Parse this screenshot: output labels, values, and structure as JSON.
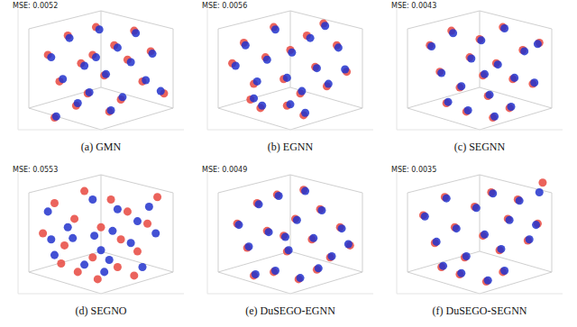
{
  "chart_data": [
    {
      "type": "scatter",
      "title": "(a) GMN",
      "annotation": "MSE: 0.0052",
      "xlim": [
        0,
        1
      ],
      "ylim": [
        0,
        1
      ],
      "tick_labels": false,
      "grid": false,
      "series": [
        {
          "color": "#e8483f",
          "x": [
            0.18,
            0.25,
            0.3,
            0.38,
            0.42,
            0.47,
            0.52,
            0.58,
            0.62,
            0.66,
            0.7,
            0.75,
            0.8,
            0.55,
            0.35,
            0.22,
            0.88,
            0.45
          ],
          "y": [
            0.62,
            0.4,
            0.78,
            0.55,
            0.3,
            0.85,
            0.45,
            0.7,
            0.25,
            0.58,
            0.82,
            0.4,
            0.65,
            0.15,
            0.2,
            0.1,
            0.3,
            0.62
          ]
        },
        {
          "color": "#2233cc",
          "x": [
            0.2,
            0.27,
            0.31,
            0.4,
            0.43,
            0.49,
            0.53,
            0.6,
            0.63,
            0.68,
            0.71,
            0.77,
            0.81,
            0.56,
            0.36,
            0.23,
            0.86,
            0.47
          ],
          "y": [
            0.6,
            0.42,
            0.76,
            0.53,
            0.31,
            0.83,
            0.46,
            0.68,
            0.27,
            0.56,
            0.8,
            0.41,
            0.63,
            0.16,
            0.22,
            0.11,
            0.32,
            0.6
          ]
        }
      ]
    },
    {
      "type": "scatter",
      "title": "(b) EGNN",
      "annotation": "MSE: 0.0056",
      "xlim": [
        0,
        1
      ],
      "ylim": [
        0,
        1
      ],
      "tick_labels": false,
      "grid": false,
      "series": [
        {
          "color": "#e8483f",
          "x": [
            0.15,
            0.22,
            0.28,
            0.35,
            0.4,
            0.46,
            0.5,
            0.56,
            0.6,
            0.65,
            0.72,
            0.78,
            0.84,
            0.48,
            0.32,
            0.7,
            0.58,
            0.26
          ],
          "y": [
            0.55,
            0.72,
            0.38,
            0.6,
            0.85,
            0.42,
            0.66,
            0.3,
            0.78,
            0.52,
            0.36,
            0.7,
            0.48,
            0.2,
            0.18,
            0.88,
            0.12,
            0.25
          ]
        },
        {
          "color": "#2233cc",
          "x": [
            0.17,
            0.23,
            0.3,
            0.36,
            0.41,
            0.48,
            0.51,
            0.57,
            0.62,
            0.66,
            0.73,
            0.79,
            0.83,
            0.5,
            0.33,
            0.71,
            0.59,
            0.28
          ],
          "y": [
            0.53,
            0.7,
            0.4,
            0.58,
            0.83,
            0.43,
            0.64,
            0.32,
            0.76,
            0.51,
            0.38,
            0.68,
            0.5,
            0.21,
            0.2,
            0.86,
            0.14,
            0.26
          ]
        }
      ]
    },
    {
      "type": "scatter",
      "title": "(c) SEGNN",
      "annotation": "MSE: 0.0043",
      "xlim": [
        0,
        1
      ],
      "ylim": [
        0,
        1
      ],
      "tick_labels": false,
      "grid": false,
      "series": [
        {
          "color": "#e8483f",
          "x": [
            0.2,
            0.26,
            0.33,
            0.38,
            0.44,
            0.5,
            0.55,
            0.6,
            0.64,
            0.7,
            0.76,
            0.82,
            0.42,
            0.58,
            0.3,
            0.68,
            0.86,
            0.52
          ],
          "y": [
            0.7,
            0.48,
            0.82,
            0.35,
            0.6,
            0.75,
            0.28,
            0.55,
            0.85,
            0.42,
            0.66,
            0.38,
            0.15,
            0.1,
            0.22,
            0.18,
            0.72,
            0.45
          ]
        },
        {
          "color": "#2233cc",
          "x": [
            0.21,
            0.27,
            0.34,
            0.39,
            0.45,
            0.51,
            0.56,
            0.61,
            0.65,
            0.71,
            0.77,
            0.83,
            0.43,
            0.59,
            0.31,
            0.69,
            0.85,
            0.53
          ],
          "y": [
            0.69,
            0.47,
            0.8,
            0.36,
            0.59,
            0.74,
            0.29,
            0.54,
            0.84,
            0.43,
            0.65,
            0.39,
            0.16,
            0.11,
            0.23,
            0.19,
            0.71,
            0.46
          ]
        }
      ]
    },
    {
      "type": "scatter",
      "title": "(d) SEGNO",
      "annotation": "MSE: 0.0553",
      "xlim": [
        0,
        1
      ],
      "ylim": [
        0,
        1
      ],
      "tick_labels": false,
      "grid": false,
      "series": [
        {
          "color": "#e8483f",
          "x": [
            0.15,
            0.22,
            0.28,
            0.34,
            0.4,
            0.45,
            0.5,
            0.56,
            0.62,
            0.66,
            0.72,
            0.78,
            0.84,
            0.36,
            0.48,
            0.6,
            0.26,
            0.7
          ],
          "y": [
            0.5,
            0.75,
            0.4,
            0.62,
            0.85,
            0.3,
            0.55,
            0.78,
            0.45,
            0.68,
            0.35,
            0.58,
            0.8,
            0.18,
            0.12,
            0.22,
            0.25,
            0.15
          ]
        },
        {
          "color": "#2233cc",
          "x": [
            0.2,
            0.18,
            0.33,
            0.3,
            0.45,
            0.5,
            0.46,
            0.6,
            0.57,
            0.72,
            0.68,
            0.83,
            0.79,
            0.4,
            0.52,
            0.55,
            0.22,
            0.75
          ],
          "y": [
            0.45,
            0.68,
            0.46,
            0.55,
            0.78,
            0.36,
            0.48,
            0.7,
            0.52,
            0.6,
            0.42,
            0.5,
            0.72,
            0.24,
            0.18,
            0.28,
            0.32,
            0.22
          ]
        }
      ]
    },
    {
      "type": "scatter",
      "title": "(e) DuSEGO-EGNN",
      "annotation": "MSE: 0.0049",
      "xlim": [
        0,
        1
      ],
      "ylim": [
        0,
        1
      ],
      "tick_labels": false,
      "grid": false,
      "series": [
        {
          "color": "#e8483f",
          "x": [
            0.18,
            0.24,
            0.3,
            0.36,
            0.42,
            0.48,
            0.53,
            0.58,
            0.63,
            0.68,
            0.74,
            0.8,
            0.86,
            0.4,
            0.55,
            0.28,
            0.66,
            0.46
          ],
          "y": [
            0.58,
            0.38,
            0.75,
            0.52,
            0.82,
            0.35,
            0.62,
            0.86,
            0.45,
            0.7,
            0.3,
            0.55,
            0.4,
            0.18,
            0.12,
            0.15,
            0.2,
            0.48
          ]
        },
        {
          "color": "#2233cc",
          "x": [
            0.19,
            0.25,
            0.31,
            0.37,
            0.43,
            0.49,
            0.54,
            0.59,
            0.64,
            0.69,
            0.75,
            0.81,
            0.85,
            0.41,
            0.56,
            0.29,
            0.67,
            0.47
          ],
          "y": [
            0.57,
            0.39,
            0.74,
            0.51,
            0.81,
            0.36,
            0.61,
            0.85,
            0.46,
            0.69,
            0.31,
            0.54,
            0.41,
            0.19,
            0.13,
            0.16,
            0.21,
            0.47
          ]
        }
      ]
    },
    {
      "type": "scatter",
      "title": "(f) DuSEGO-SEGNN",
      "annotation": "MSE: 0.0035",
      "xlim": [
        0,
        1
      ],
      "ylim": [
        0,
        1
      ],
      "tick_labels": false,
      "grid": false,
      "series": [
        {
          "color": "#e8483f",
          "x": [
            0.16,
            0.23,
            0.29,
            0.35,
            0.41,
            0.47,
            0.52,
            0.57,
            0.62,
            0.67,
            0.73,
            0.79,
            0.85,
            0.38,
            0.54,
            0.27,
            0.64,
            0.88
          ],
          "y": [
            0.65,
            0.42,
            0.8,
            0.55,
            0.3,
            0.72,
            0.48,
            0.84,
            0.36,
            0.62,
            0.78,
            0.44,
            0.58,
            0.16,
            0.1,
            0.22,
            0.18,
            0.92
          ]
        },
        {
          "color": "#2233cc",
          "x": [
            0.17,
            0.24,
            0.3,
            0.36,
            0.42,
            0.48,
            0.53,
            0.58,
            0.63,
            0.68,
            0.74,
            0.8,
            0.84,
            0.39,
            0.55,
            0.28,
            0.65,
            0.86
          ],
          "y": [
            0.64,
            0.43,
            0.79,
            0.54,
            0.31,
            0.71,
            0.49,
            0.83,
            0.37,
            0.61,
            0.77,
            0.45,
            0.57,
            0.17,
            0.11,
            0.23,
            0.19,
            0.84
          ]
        }
      ]
    }
  ]
}
